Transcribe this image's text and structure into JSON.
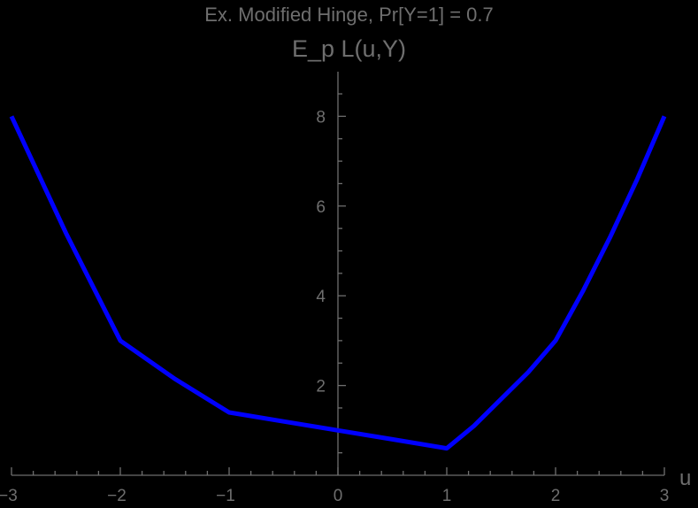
{
  "chart_data": {
    "type": "line",
    "title": "Ex. Modified Hinge, Pr[Y=1] = 0.7",
    "subtitle": "E_p L(u,Y)",
    "xlabel": "u",
    "ylabel": "",
    "xlim": [
      -3,
      3
    ],
    "ylim": [
      0,
      8.9
    ],
    "x_ticks": [
      -3,
      -2,
      -1,
      0,
      1,
      2,
      3
    ],
    "x_tick_labels": [
      "−3",
      "−2",
      "−1",
      "0",
      "1",
      "2",
      "3"
    ],
    "y_ticks": [
      2,
      4,
      6,
      8
    ],
    "y_tick_labels": [
      "2",
      "4",
      "6",
      "8"
    ],
    "grid": false,
    "legend": null,
    "series": [
      {
        "name": "E_p L(u,Y)",
        "color": "#0000ff",
        "x": [
          -3,
          -2.5,
          -2,
          -1.5,
          -1,
          -0.5,
          0,
          0.5,
          1,
          1.25,
          1.5,
          1.75,
          2,
          2.25,
          2.5,
          2.75,
          3
        ],
        "y": [
          8.0,
          5.4,
          3.0,
          2.15,
          1.4,
          1.2,
          1.0,
          0.8,
          0.6,
          1.1,
          1.7,
          2.3,
          3.0,
          4.1,
          5.3,
          6.6,
          8.0
        ]
      }
    ]
  },
  "colors": {
    "background": "#000000",
    "axis": "#6e6e6e",
    "line": "#0000ff"
  }
}
